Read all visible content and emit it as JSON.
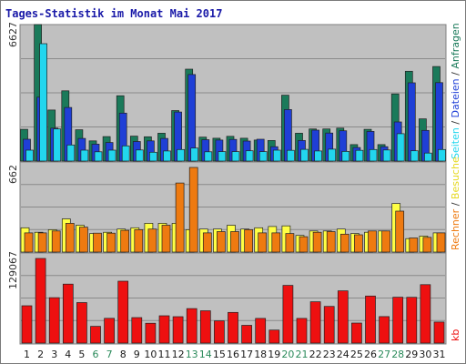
{
  "chart_data": {
    "title": "Tages-Statistik im Monat Mai 2017",
    "type": "bar",
    "categories": [
      "1",
      "2",
      "3",
      "4",
      "5",
      "6",
      "7",
      "8",
      "9",
      "10",
      "11",
      "12",
      "13",
      "14",
      "15",
      "16",
      "17",
      "18",
      "19",
      "20",
      "21",
      "22",
      "23",
      "24",
      "25",
      "26",
      "27",
      "28",
      "29",
      "30",
      "31"
    ],
    "weekend_days": [
      "6",
      "7",
      "13",
      "14",
      "20",
      "21",
      "27",
      "28"
    ],
    "panels": [
      {
        "id": "top",
        "ymax_label": "6627",
        "ymax": 6627,
        "series": [
          {
            "name": "Anfragen",
            "color": "#1a7a5a",
            "values": [
              1540,
              6627,
              2480,
              3410,
              1520,
              980,
              1190,
              3170,
              1210,
              1180,
              1350,
              2450,
              4460,
              1160,
              1110,
              1200,
              1110,
              1020,
              1000,
              3200,
              1350,
              1560,
              1560,
              1600,
              800,
              1540,
              800,
              3260,
              4360,
              2050,
              4590
            ]
          },
          {
            "name": "Dateien",
            "color": "#1f3fd6",
            "values": [
              1060,
              3100,
              1600,
              2600,
              1100,
              820,
              900,
              2330,
              950,
              980,
              1100,
              2380,
              4200,
              1040,
              1020,
              1050,
              970,
              1060,
              700,
              2500,
              1000,
              1500,
              1360,
              1470,
              660,
              1440,
              700,
              1900,
              3800,
              1490,
              3810
            ]
          },
          {
            "name": "Seiten",
            "color": "#22d6ee",
            "values": [
              530,
              5700,
              1560,
              780,
              530,
              450,
              530,
              740,
              540,
              430,
              490,
              560,
              630,
              450,
              460,
              460,
              500,
              460,
              530,
              520,
              570,
              490,
              580,
              470,
              520,
              560,
              540,
              1330,
              500,
              390,
              560
            ]
          }
        ]
      },
      {
        "id": "middle",
        "ymax_label": "662",
        "ymax": 662,
        "series": [
          {
            "name": "Besuche",
            "color": "#ffff44",
            "values": [
              190,
              155,
              175,
              260,
              210,
              145,
              155,
              180,
              190,
              225,
              225,
              225,
              175,
              180,
              180,
              210,
              180,
              190,
              200,
              205,
              130,
              165,
              165,
              180,
              145,
              155,
              165,
              380,
              105,
              125,
              150
            ]
          },
          {
            "name": "Rechner",
            "color": "#ee7a10",
            "values": [
              150,
              150,
              165,
              225,
              195,
              148,
              148,
              170,
              175,
              180,
              210,
              540,
              662,
              150,
              160,
              160,
              175,
              150,
              150,
              145,
              120,
              155,
              160,
              140,
              135,
              165,
              165,
              320,
              110,
              115,
              150
            ]
          }
        ]
      },
      {
        "id": "bottom",
        "ymax_label": "129067",
        "ymax": 129067,
        "series": [
          {
            "name": "kb",
            "color": "#ee1010",
            "values": [
              56900,
              129067,
              69200,
              89900,
              61700,
              25500,
              37800,
              94400,
              38900,
              30200,
              41600,
              40200,
              52600,
              49300,
              33900,
              46800,
              27100,
              37600,
              19900,
              88000,
              37600,
              63000,
              55900,
              79700,
              30600,
              71700,
              40400,
              69900,
              69800,
              89100,
              32000
            ]
          }
        ]
      }
    ],
    "legend": [
      "Anfragen",
      "Dateien",
      "Seiten",
      "Besuche",
      "Rechner",
      "kb"
    ]
  }
}
